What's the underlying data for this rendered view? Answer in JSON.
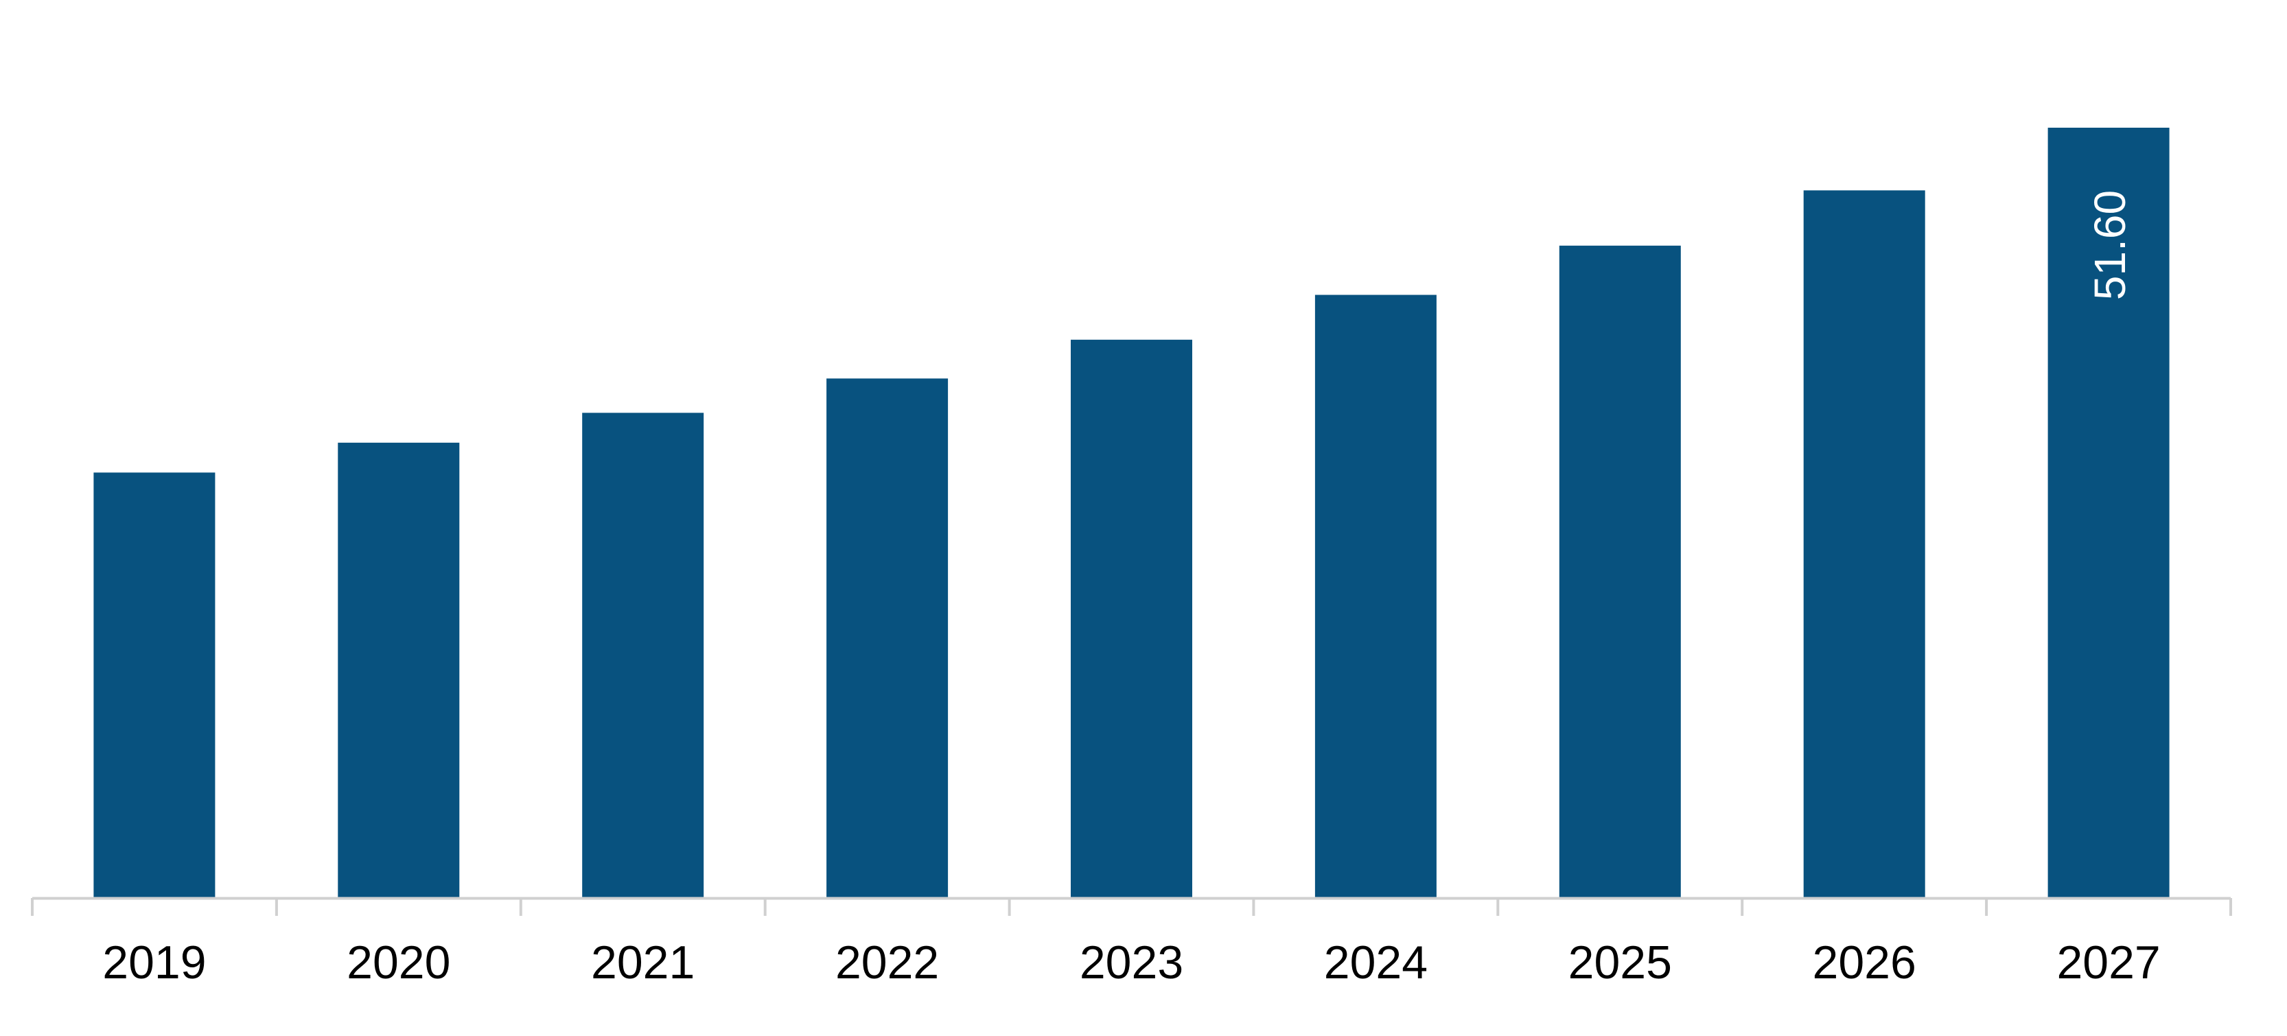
{
  "chart_data": {
    "type": "bar",
    "categories": [
      "2019",
      "2020",
      "2021",
      "2022",
      "2023",
      "2024",
      "2025",
      "2026",
      "2027"
    ],
    "values": [
      28.5,
      30.5,
      32.5,
      34.8,
      37.4,
      40.4,
      43.7,
      47.4,
      51.6
    ],
    "data_labels": [
      "",
      "",
      "",
      "",
      "",
      "",
      "",
      "",
      "51.60"
    ],
    "data_label_orientation": "vertical",
    "bar_color": "#08527F",
    "axis_color": "#D0D0D0",
    "ylim": [
      0,
      51.6
    ],
    "grid": false,
    "legend": "none",
    "title": "",
    "xlabel": "",
    "ylabel": ""
  }
}
